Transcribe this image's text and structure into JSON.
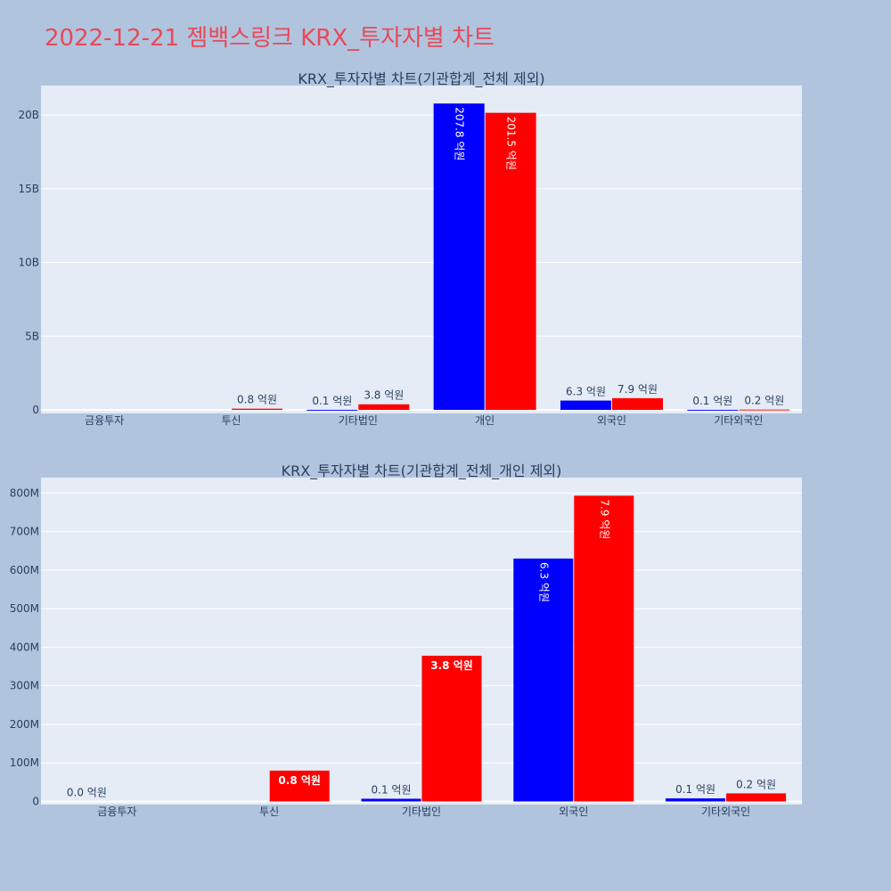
{
  "page_title": "2022-12-21 젬백스링크 KRX_투자자별 차트",
  "colors": {
    "series_a": "#0000ff",
    "series_b": "#ff0000",
    "plot_bg": "#e5ecf6",
    "page_bg": "#b0c4de",
    "title": "#e8495a"
  },
  "chart_data": [
    {
      "type": "bar",
      "title": "KRX_투자자별 차트(기관합계_전체 제외)",
      "categories": [
        "금융투자",
        "투신",
        "기타법인",
        "개인",
        "외국인",
        "기타외국인"
      ],
      "ylim": [
        0,
        22000000000
      ],
      "yticks": [
        0,
        5000000000,
        10000000000,
        15000000000,
        20000000000
      ],
      "ytick_labels": [
        "0",
        "5B",
        "10B",
        "15B",
        "20B"
      ],
      "series": [
        {
          "values": [
            0,
            0,
            7000000,
            20780000000,
            630000000,
            8000000
          ],
          "labels": [
            "",
            "",
            "0.1 억원",
            "207.8 억원",
            "6.3 억원",
            "0.1 억원"
          ]
        },
        {
          "values": [
            0,
            80000000,
            378000000,
            20150000000,
            793000000,
            21000000
          ],
          "labels": [
            "",
            "0.8 억원",
            "3.8 억원",
            "201.5 억원",
            "7.9 억원",
            "0.2 억원"
          ]
        }
      ]
    },
    {
      "type": "bar",
      "title": "KRX_투자자별 차트(기관합계_전체_개인 제외)",
      "categories": [
        "금융투자",
        "투신",
        "기타법인",
        "외국인",
        "기타외국인"
      ],
      "ylim": [
        0,
        840000000
      ],
      "yticks": [
        0,
        100000000,
        200000000,
        300000000,
        400000000,
        500000000,
        600000000,
        700000000,
        800000000
      ],
      "ytick_labels": [
        "0",
        "100M",
        "200M",
        "300M",
        "400M",
        "500M",
        "600M",
        "700M",
        "800M"
      ],
      "series": [
        {
          "values": [
            0,
            0,
            7000000,
            630000000,
            8000000
          ],
          "labels": [
            "0.0 억원",
            "",
            "0.1 억원",
            "6.3 억원",
            "0.1 억원"
          ]
        },
        {
          "values": [
            0,
            80000000,
            378000000,
            793000000,
            21000000
          ],
          "labels": [
            "",
            "0.8 억원",
            "3.8 억원",
            "7.9 억원",
            "0.2 억원"
          ]
        }
      ]
    }
  ]
}
